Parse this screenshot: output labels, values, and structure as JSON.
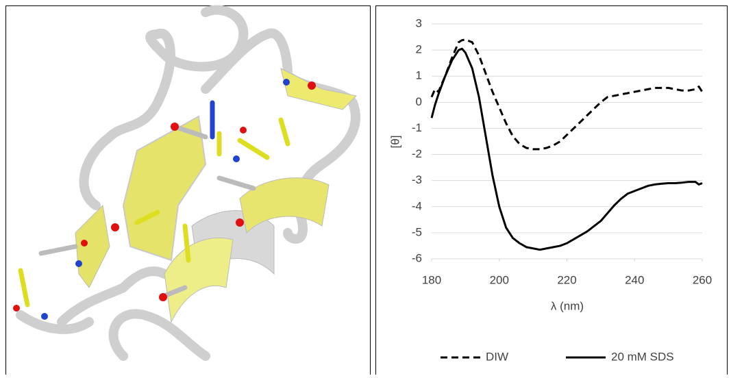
{
  "chart_data": {
    "type": "line",
    "xlabel": "λ (nm)",
    "ylabel": "[θ]",
    "x": [
      180,
      181,
      182,
      184,
      186,
      188,
      189,
      190,
      192,
      194,
      196,
      198,
      200,
      202,
      204,
      206,
      208,
      210,
      212,
      214,
      216,
      218,
      220,
      222,
      224,
      226,
      228,
      230,
      232,
      234,
      236,
      238,
      240,
      242,
      244,
      246,
      248,
      250,
      252,
      254,
      256,
      258,
      259,
      260
    ],
    "series": [
      {
        "name": "DIW",
        "color": "#000000",
        "style": "dashed",
        "values": [
          0.2,
          0.5,
          0.4,
          1.0,
          1.7,
          2.3,
          2.38,
          2.4,
          2.3,
          1.8,
          1.1,
          0.4,
          -0.2,
          -0.8,
          -1.3,
          -1.6,
          -1.75,
          -1.8,
          -1.8,
          -1.75,
          -1.65,
          -1.5,
          -1.25,
          -1.0,
          -0.75,
          -0.5,
          -0.25,
          0.0,
          0.2,
          0.25,
          0.3,
          0.35,
          0.4,
          0.45,
          0.5,
          0.55,
          0.55,
          0.55,
          0.5,
          0.45,
          0.45,
          0.5,
          0.6,
          0.4
        ]
      },
      {
        "name": "20 mM SDS",
        "color": "#000000",
        "style": "solid",
        "values": [
          -0.6,
          -0.1,
          0.3,
          1.0,
          1.6,
          2.0,
          2.05,
          1.9,
          1.3,
          0.2,
          -1.3,
          -2.8,
          -4.0,
          -4.8,
          -5.2,
          -5.4,
          -5.55,
          -5.6,
          -5.65,
          -5.6,
          -5.55,
          -5.5,
          -5.4,
          -5.25,
          -5.1,
          -4.95,
          -4.75,
          -4.55,
          -4.25,
          -3.95,
          -3.7,
          -3.5,
          -3.4,
          -3.3,
          -3.2,
          -3.15,
          -3.12,
          -3.1,
          -3.1,
          -3.08,
          -3.05,
          -3.05,
          -3.15,
          -3.1
        ]
      }
    ],
    "xlim": [
      180,
      260
    ],
    "xticks": [
      180,
      200,
      220,
      240,
      260
    ],
    "ylim": [
      -6,
      3
    ],
    "yticks": [
      -6,
      -5,
      -4,
      -3,
      -2,
      -1,
      0,
      1,
      2,
      3
    ],
    "grid": true,
    "legend": "bottom"
  }
}
